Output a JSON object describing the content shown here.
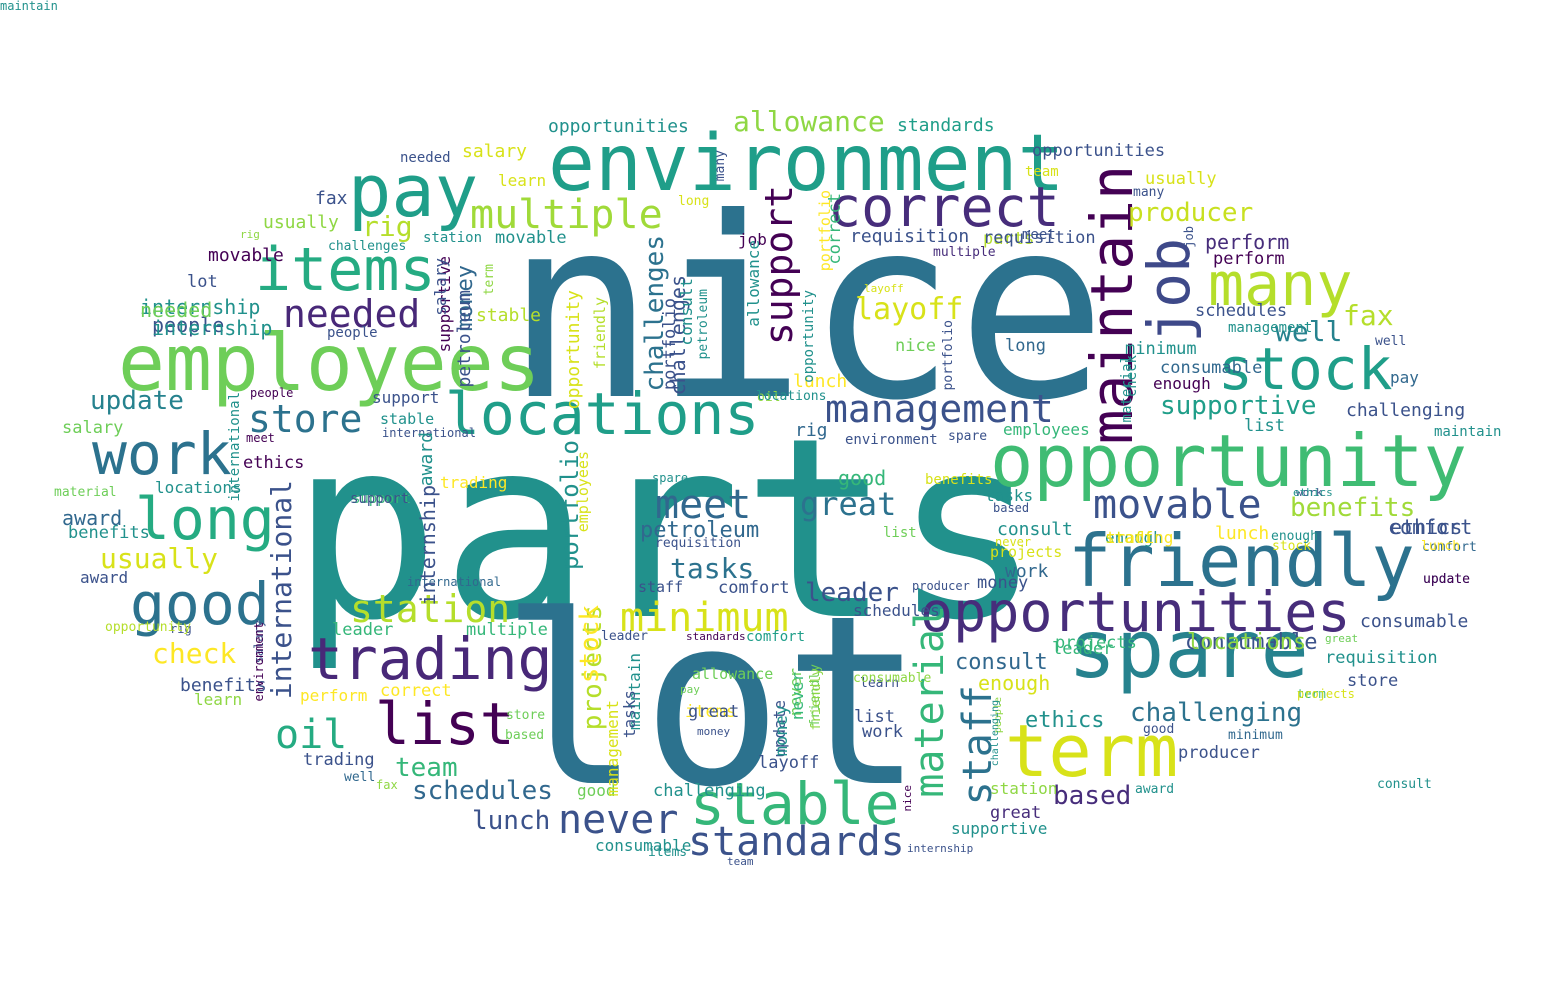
{
  "palette": [
    "#440154",
    "#482878",
    "#3e4989",
    "#31688e",
    "#26828e",
    "#1f9e89",
    "#35b779",
    "#6ece58",
    "#b5de2b",
    "#fde725"
  ],
  "words": [
    {
      "text": "parts",
      "color": "#21918c"
    },
    {
      "text": "nice",
      "color": "#2c728e"
    },
    {
      "text": "lot",
      "color": "#2c728e"
    },
    {
      "text": "environment",
      "color": "#1f9e89"
    },
    {
      "text": "employees",
      "color": "#6ece58"
    },
    {
      "text": "opportunity",
      "color": "#3fbc73"
    },
    {
      "text": "pay",
      "color": "#1f9e89"
    },
    {
      "text": "term",
      "color": "#d8e219"
    },
    {
      "text": "friendly",
      "color": "#2c728e"
    },
    {
      "text": "spare",
      "color": "#26828e"
    },
    {
      "text": "correct",
      "color": "#472d7b"
    },
    {
      "text": "items",
      "color": "#25ab82"
    },
    {
      "text": "locations",
      "color": "#1f9e89"
    },
    {
      "text": "opportunities",
      "color": "#472d7b"
    },
    {
      "text": "trading",
      "color": "#482878"
    },
    {
      "text": "stock",
      "color": "#1f9e89"
    },
    {
      "text": "many",
      "color": "#b5de2b"
    },
    {
      "text": "maintain",
      "color": "#440154"
    },
    {
      "text": "job",
      "color": "#3e4989"
    },
    {
      "text": "work",
      "color": "#2c728e"
    },
    {
      "text": "long",
      "color": "#25ab82"
    },
    {
      "text": "good",
      "color": "#2c728e"
    },
    {
      "text": "list",
      "color": "#440154"
    },
    {
      "text": "stable",
      "color": "#35b779"
    },
    {
      "text": "multiple",
      "color": "#a0da39"
    },
    {
      "text": "management",
      "color": "#3b528b"
    },
    {
      "text": "needed",
      "color": "#482878"
    },
    {
      "text": "movable",
      "color": "#3b528b"
    },
    {
      "text": "standards",
      "color": "#3b528b"
    },
    {
      "text": "material",
      "color": "#35b779"
    },
    {
      "text": "staff",
      "color": "#2c728e"
    },
    {
      "text": "never",
      "color": "#3b528b"
    },
    {
      "text": "minimum",
      "color": "#d8e219"
    },
    {
      "text": "meet",
      "color": "#31688e"
    },
    {
      "text": "station",
      "color": "#b5de2b"
    },
    {
      "text": "support",
      "color": "#440154"
    },
    {
      "text": "store",
      "color": "#2c728e"
    },
    {
      "text": "great",
      "color": "#2c728e"
    },
    {
      "text": "allowance",
      "color": "#8fd744"
    },
    {
      "text": "producer",
      "color": "#c8e020"
    },
    {
      "text": "supportive",
      "color": "#1f9e89"
    },
    {
      "text": "challenging",
      "color": "#2c728e"
    },
    {
      "text": "oil",
      "color": "#25ab82"
    },
    {
      "text": "rig",
      "color": "#b5de2b"
    },
    {
      "text": "layoff",
      "color": "#d8e219"
    },
    {
      "text": "international",
      "color": "#3b528b"
    },
    {
      "text": "challenges",
      "color": "#2c728e"
    },
    {
      "text": "benefits",
      "color": "#a0da39"
    },
    {
      "text": "well",
      "color": "#26828e"
    },
    {
      "text": "fax",
      "color": "#b5de2b"
    },
    {
      "text": "tasks",
      "color": "#2c728e"
    },
    {
      "text": "usually",
      "color": "#d8e219"
    },
    {
      "text": "check",
      "color": "#fde725"
    },
    {
      "text": "update",
      "color": "#26828e"
    },
    {
      "text": "schedules",
      "color": "#31688e"
    },
    {
      "text": "team",
      "color": "#35b779"
    },
    {
      "text": "lunch",
      "color": "#3b528b"
    },
    {
      "text": "projects",
      "color": "#b5de2b"
    },
    {
      "text": "portfolio",
      "color": "#21918c"
    },
    {
      "text": "petroleum",
      "color": "#31688e"
    },
    {
      "text": "leader",
      "color": "#3b528b"
    },
    {
      "text": "money",
      "color": "#31688e"
    },
    {
      "text": "consult",
      "color": "#31688e"
    },
    {
      "text": "consumable",
      "color": "#3b528b"
    },
    {
      "text": "based",
      "color": "#472d7b"
    },
    {
      "text": "ethics",
      "color": "#21918c"
    },
    {
      "text": "enough",
      "color": "#d8e219"
    },
    {
      "text": "comfort",
      "color": "#3b528b"
    },
    {
      "text": "requisition",
      "color": "#3b528b"
    },
    {
      "text": "perform",
      "color": "#472d7b"
    },
    {
      "text": "internship",
      "color": "#21918c"
    },
    {
      "text": "people",
      "color": "#3b528b"
    },
    {
      "text": "award",
      "color": "#31688e"
    },
    {
      "text": "opportunities",
      "color": "#21918c"
    },
    {
      "text": "standards",
      "color": "#1f9e89"
    },
    {
      "text": "salary",
      "color": "#d8e219"
    },
    {
      "text": "learn",
      "color": "#d8e219"
    },
    {
      "text": "needed",
      "color": "#3b528b"
    },
    {
      "text": "fax",
      "color": "#3b528b"
    },
    {
      "text": "usually",
      "color": "#8fd744"
    },
    {
      "text": "rig",
      "color": "#8fd744"
    },
    {
      "text": "challenges",
      "color": "#21918c"
    },
    {
      "text": "station",
      "color": "#21918c"
    },
    {
      "text": "movable",
      "color": "#21918c"
    },
    {
      "text": "movable",
      "color": "#440154"
    },
    {
      "text": "lot",
      "color": "#3b528b"
    },
    {
      "text": "needed",
      "color": "#6ece58"
    },
    {
      "text": "internship",
      "color": "#21918c"
    },
    {
      "text": "people",
      "color": "#3b528b"
    },
    {
      "text": "opportunities",
      "color": "#3b528b"
    },
    {
      "text": "team",
      "color": "#d8e219"
    },
    {
      "text": "usually",
      "color": "#d8e219"
    },
    {
      "text": "many",
      "color": "#3b528b"
    },
    {
      "text": "long",
      "color": "#d8e219"
    },
    {
      "text": "many",
      "color": "#3b528b"
    },
    {
      "text": "job",
      "color": "#440154"
    },
    {
      "text": "parts",
      "color": "#b5de2b"
    },
    {
      "text": "requisition",
      "color": "#3b528b"
    },
    {
      "text": "meet",
      "color": "#3b528b"
    },
    {
      "text": "multiple",
      "color": "#472d7b"
    },
    {
      "text": "layoff",
      "color": "#d8e219"
    },
    {
      "text": "perform",
      "color": "#440154"
    },
    {
      "text": "schedules",
      "color": "#3b528b"
    },
    {
      "text": "management",
      "color": "#21918c"
    },
    {
      "text": "well",
      "color": "#3b528b"
    },
    {
      "text": "stable",
      "color": "#b5de2b"
    },
    {
      "text": "nice",
      "color": "#6ece58"
    },
    {
      "text": "long",
      "color": "#31688e"
    },
    {
      "text": "minimum",
      "color": "#21918c"
    },
    {
      "text": "consumable",
      "color": "#31688e"
    },
    {
      "text": "pay",
      "color": "#31688e"
    },
    {
      "text": "enough",
      "color": "#440154"
    },
    {
      "text": "lunch",
      "color": "#fde725"
    },
    {
      "text": "oil",
      "color": "#8fd744"
    },
    {
      "text": "support",
      "color": "#3b528b"
    },
    {
      "text": "stable",
      "color": "#21918c"
    },
    {
      "text": "salary",
      "color": "#6ece58"
    },
    {
      "text": "international",
      "color": "#3b528b"
    },
    {
      "text": "meet",
      "color": "#440154"
    },
    {
      "text": "ethics",
      "color": "#440154"
    },
    {
      "text": "rig",
      "color": "#31688e"
    },
    {
      "text": "environment",
      "color": "#3b528b"
    },
    {
      "text": "spare",
      "color": "#3b528b"
    },
    {
      "text": "check",
      "color": "#21918c"
    },
    {
      "text": "maintain",
      "color": "#21918c"
    },
    {
      "text": "list",
      "color": "#21918c"
    },
    {
      "text": "challenging",
      "color": "#3b528b"
    },
    {
      "text": "employees",
      "color": "#35b779"
    },
    {
      "text": "material",
      "color": "#6ece58"
    },
    {
      "text": "locations",
      "color": "#21918c"
    },
    {
      "text": "support",
      "color": "#35b779"
    },
    {
      "text": "trading",
      "color": "#fde725"
    },
    {
      "text": "benefits",
      "color": "#d8e219"
    },
    {
      "text": "tasks",
      "color": "#21918c"
    },
    {
      "text": "based",
      "color": "#3b528b"
    },
    {
      "text": "never",
      "color": "#d8e219"
    },
    {
      "text": "projects",
      "color": "#d8e219"
    },
    {
      "text": "enough",
      "color": "#21918c"
    },
    {
      "text": "consult",
      "color": "#21918c"
    },
    {
      "text": "stock",
      "color": "#d8e219"
    },
    {
      "text": "lunch",
      "color": "#fde725"
    },
    {
      "text": "staff",
      "color": "#d8e219"
    },
    {
      "text": "ethics",
      "color": "#3b528b"
    },
    {
      "text": "comfort",
      "color": "#31688e"
    },
    {
      "text": "update",
      "color": "#31688e"
    },
    {
      "text": "work",
      "color": "#3b528b"
    },
    {
      "text": "award",
      "color": "#3b528b"
    },
    {
      "text": "requisition",
      "color": "#3b528b"
    },
    {
      "text": "international",
      "color": "#31688e"
    },
    {
      "text": "staff",
      "color": "#3b528b"
    },
    {
      "text": "comfort",
      "color": "#3b528b"
    },
    {
      "text": "producer",
      "color": "#3b528b"
    },
    {
      "text": "rig",
      "color": "#3b528b"
    },
    {
      "text": "leader",
      "color": "#35b779"
    },
    {
      "text": "multiple",
      "color": "#35b779"
    },
    {
      "text": "leader",
      "color": "#3b528b"
    },
    {
      "text": "standards",
      "color": "#440154"
    },
    {
      "text": "comfort",
      "color": "#1f9e89"
    },
    {
      "text": "schedules",
      "color": "#3b528b"
    },
    {
      "text": "money",
      "color": "#3b528b"
    },
    {
      "text": "projects",
      "color": "#35b779"
    },
    {
      "text": "locations",
      "color": "#8fd744"
    },
    {
      "text": "consumable",
      "color": "#3b528b"
    },
    {
      "text": "great",
      "color": "#6ece58"
    },
    {
      "text": "requisition",
      "color": "#21918c"
    },
    {
      "text": "store",
      "color": "#3b528b"
    },
    {
      "text": "term",
      "color": "#35b779"
    },
    {
      "text": "salary",
      "color": "#3b528b"
    },
    {
      "text": "benefits",
      "color": "#3b528b"
    },
    {
      "text": "learn",
      "color": "#8fd744"
    },
    {
      "text": "perform",
      "color": "#fde725"
    },
    {
      "text": "correct",
      "color": "#fde725"
    },
    {
      "text": "allowance",
      "color": "#6ece58"
    },
    {
      "text": "pay",
      "color": "#6ece58"
    },
    {
      "text": "learn",
      "color": "#3b528b"
    },
    {
      "text": "store",
      "color": "#6ece58"
    },
    {
      "text": "based",
      "color": "#6ece58"
    },
    {
      "text": "money",
      "color": "#3b528b"
    },
    {
      "text": "items",
      "color": "#fde725"
    },
    {
      "text": "list",
      "color": "#3b528b"
    },
    {
      "text": "work",
      "color": "#3b528b"
    },
    {
      "text": "good",
      "color": "#3b528b"
    },
    {
      "text": "minimum",
      "color": "#31688e"
    },
    {
      "text": "producer",
      "color": "#3b528b"
    },
    {
      "text": "trading",
      "color": "#3b528b"
    },
    {
      "text": "layoff",
      "color": "#3b528b"
    },
    {
      "text": "update",
      "color": "#3b528b"
    },
    {
      "text": "never",
      "color": "#6ece58"
    },
    {
      "text": "friendly",
      "color": "#6ece58"
    },
    {
      "text": "challenging",
      "color": "#21918c"
    },
    {
      "text": "well",
      "color": "#31688e"
    },
    {
      "text": "fax",
      "color": "#8fd744"
    },
    {
      "text": "good",
      "color": "#6ece58"
    },
    {
      "text": "station",
      "color": "#8fd744"
    },
    {
      "text": "award",
      "color": "#21918c"
    },
    {
      "text": "great",
      "color": "#472d7b"
    },
    {
      "text": "supportive",
      "color": "#21918c"
    },
    {
      "text": "nice",
      "color": "#440154"
    },
    {
      "text": "people",
      "color": "#8fd744"
    },
    {
      "text": "consumable",
      "color": "#21918c"
    },
    {
      "text": "items",
      "color": "#21918c"
    },
    {
      "text": "team",
      "color": "#3b528b"
    },
    {
      "text": "internship",
      "color": "#3b528b"
    },
    {
      "text": "award",
      "color": "#21918c"
    },
    {
      "text": "opportunity",
      "color": "#d8e219"
    },
    {
      "text": "friendly",
      "color": "#b5de2b"
    },
    {
      "text": "employees",
      "color": "#d8e219"
    },
    {
      "text": "challenges",
      "color": "#3b528b"
    },
    {
      "text": "portfolio",
      "color": "#3b528b"
    },
    {
      "text": "consult",
      "color": "#21918c"
    },
    {
      "text": "petroleum",
      "color": "#21918c"
    },
    {
      "text": "allowance",
      "color": "#21918c"
    },
    {
      "text": "opportunity",
      "color": "#21918c"
    },
    {
      "text": "correct",
      "color": "#35b779"
    },
    {
      "text": "portfolio",
      "color": "#fde725"
    },
    {
      "text": "term",
      "color": "#8fd744"
    },
    {
      "text": "job",
      "color": "#3b528b"
    },
    {
      "text": "portfolio",
      "color": "#3b528b"
    },
    {
      "text": "material",
      "color": "#21918c"
    },
    {
      "text": "supportive",
      "color": "#440154"
    },
    {
      "text": "maintain",
      "color": "#21918c"
    },
    {
      "text": "international",
      "color": "#21918c"
    },
    {
      "text": "environment",
      "color": "#440154"
    },
    {
      "text": "benefits",
      "color": "#21918c"
    },
    {
      "text": "people",
      "color": "#440154"
    },
    {
      "text": "petroleum",
      "color": "#3b528b"
    },
    {
      "text": "money",
      "color": "#21918c"
    },
    {
      "text": "never",
      "color": "#35b779"
    },
    {
      "text": "friendly",
      "color": "#8fd744"
    },
    {
      "text": "challenging",
      "color": "#21918c"
    },
    {
      "text": "consumable",
      "color": "#8fd744"
    },
    {
      "text": "good",
      "color": "#35b779"
    },
    {
      "text": "spare",
      "color": "#21918c"
    },
    {
      "text": "management",
      "color": "#d8e219"
    },
    {
      "text": "tasks",
      "color": "#3b528b"
    },
    {
      "text": "internship",
      "color": "#3b528b"
    },
    {
      "text": "opportunity",
      "color": "#b5de2b"
    },
    {
      "text": "leader",
      "color": "#35b779"
    },
    {
      "text": "locations",
      "color": "#21918c"
    },
    {
      "text": "support",
      "color": "#3b528b"
    },
    {
      "text": "trading",
      "color": "#fde725"
    },
    {
      "text": "ethics",
      "color": "#21918c"
    },
    {
      "text": "enough",
      "color": "#21918c"
    },
    {
      "text": "lunch",
      "color": "#fde725"
    },
    {
      "text": "update",
      "color": "#440154"
    },
    {
      "text": "work",
      "color": "#31688e"
    },
    {
      "text": "consult",
      "color": "#21918c"
    },
    {
      "text": "great",
      "color": "#3b528b"
    },
    {
      "text": "list",
      "color": "#6ece58"
    },
    {
      "text": "stock",
      "color": "#fde725"
    },
    {
      "text": "projects",
      "color": "#d8e219"
    },
    {
      "text": "salary",
      "color": "#3b528b"
    },
    {
      "text": "maintain",
      "color": "#21918c"
    }
  ]
}
